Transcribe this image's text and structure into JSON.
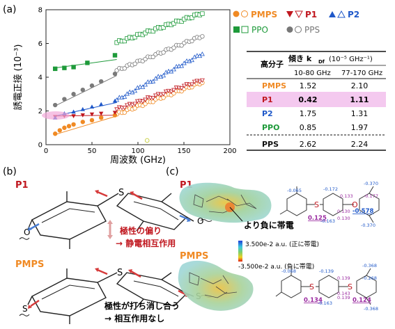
{
  "panel_labels": {
    "a": "(a)",
    "b": "(b)",
    "c": "(c)"
  },
  "chart_data": {
    "type": "scatter",
    "xlabel": "周波数 (GHz)",
    "ylabel": "誘電正接 (10⁻³)",
    "xlim": [
      0,
      200
    ],
    "ylim": [
      0,
      8
    ],
    "xticks": [
      "0",
      "50",
      "100",
      "150",
      "200"
    ],
    "yticks": [
      "0",
      "2",
      "4",
      "6",
      "8"
    ],
    "legend_position": "top-right, outside plot",
    "series": [
      {
        "name": "PMPS",
        "color": "#f08a24",
        "marker": "circle",
        "filled": [
          [
            10,
            0.65
          ],
          [
            15,
            0.85
          ],
          [
            20,
            1.0
          ],
          [
            25,
            1.1
          ],
          [
            30,
            1.2
          ],
          [
            40,
            1.35
          ],
          [
            50,
            1.45
          ],
          [
            60,
            1.6
          ],
          [
            75,
            1.75
          ]
        ],
        "open_x": [
          77,
          170
        ],
        "open_y": [
          1.8,
          3.7
        ],
        "fit_low": [
          [
            10,
            0.6
          ],
          [
            77,
            1.7
          ]
        ],
        "fit_high": [
          [
            77,
            1.9
          ],
          [
            170,
            3.7
          ]
        ]
      },
      {
        "name": "P1",
        "color": "#c0171f",
        "marker": "triangle-down",
        "filled": [
          [
            10,
            1.65
          ],
          [
            20,
            1.7
          ],
          [
            30,
            1.7
          ],
          [
            40,
            1.75
          ],
          [
            50,
            1.8
          ],
          [
            60,
            1.85
          ],
          [
            75,
            1.9
          ]
        ],
        "open_x": [
          77,
          170
        ],
        "open_y": [
          2.1,
          3.85
        ],
        "fit_low": [
          [
            10,
            1.7
          ],
          [
            77,
            1.75
          ]
        ],
        "fit_high": [
          [
            77,
            2.1
          ],
          [
            170,
            3.85
          ]
        ]
      },
      {
        "name": "P2",
        "color": "#1f58c9",
        "marker": "triangle-up",
        "filled": [
          [
            10,
            1.6
          ],
          [
            20,
            1.85
          ],
          [
            30,
            1.95
          ],
          [
            40,
            2.1
          ],
          [
            50,
            2.25
          ],
          [
            60,
            2.4
          ],
          [
            75,
            2.6
          ]
        ],
        "open_x": [
          77,
          170
        ],
        "open_y": [
          2.65,
          5.4
        ],
        "fit_low": [
          [
            10,
            1.7
          ],
          [
            77,
            2.5
          ]
        ],
        "fit_high": [
          [
            77,
            2.65
          ],
          [
            170,
            5.4
          ]
        ]
      },
      {
        "name": "PPO",
        "color": "#1e9a3a",
        "marker": "square",
        "filled": [
          [
            10,
            4.5
          ],
          [
            20,
            4.55
          ],
          [
            30,
            4.6
          ],
          [
            45,
            4.85
          ],
          [
            75,
            5.3
          ]
        ],
        "open_x": [
          77,
          170
        ],
        "open_y": [
          6.05,
          7.8
        ],
        "fit_low": [
          [
            10,
            4.55
          ],
          [
            77,
            5.05
          ]
        ],
        "fit_high": [
          [
            77,
            6.05
          ],
          [
            170,
            7.8
          ]
        ]
      },
      {
        "name": "PPS",
        "color": "#7a7a7a",
        "marker": "circle",
        "filled": [
          [
            10,
            2.35
          ],
          [
            20,
            2.7
          ],
          [
            30,
            3.0
          ],
          [
            40,
            3.25
          ],
          [
            50,
            3.5
          ],
          [
            60,
            3.75
          ],
          [
            75,
            4.2
          ]
        ],
        "open_x": [
          77,
          170
        ],
        "open_y": [
          4.4,
          6.45
        ],
        "fit_low": [
          [
            10,
            2.3
          ],
          [
            77,
            4.1
          ]
        ],
        "fit_high": [
          [
            77,
            4.4
          ],
          [
            170,
            6.45
          ]
        ]
      }
    ],
    "extra_points": [
      [
        110,
        0.25
      ]
    ]
  },
  "legend": {
    "pmps": "PMPS",
    "p1": "P1",
    "p2": "P2",
    "ppo": "PPO",
    "pps": "PPS"
  },
  "table": {
    "col_header": "高分子",
    "slope_header": "傾き k",
    "slope_sub": "Df",
    "slope_unit": "(10⁻⁵ GHz⁻¹)",
    "range_low": "10-80 GHz",
    "range_high": "77-170 GHz",
    "rows": [
      {
        "name": "PMPS",
        "v1": "1.52",
        "v2": "2.10",
        "color": "#f08a24"
      },
      {
        "name": "P1",
        "v1": "0.42",
        "v2": "1.11",
        "color": "#c0171f"
      },
      {
        "name": "P2",
        "v1": "1.75",
        "v2": "1.31",
        "color": "#1f58c9"
      },
      {
        "name": "PPO",
        "v1": "0.85",
        "v2": "1.97",
        "color": "#1e9a3a"
      },
      {
        "name": "PPS",
        "v1": "2.62",
        "v2": "2.24",
        "color": "#111111"
      }
    ]
  },
  "panel_b": {
    "p1_title": "P1",
    "p1_note1": "極性の偏り",
    "p1_note2": "→ 静電相互作用",
    "pmps_title": "PMPS",
    "pmps_note1": "極性が打ち消し合う",
    "pmps_note2": "→ 相互作用なし",
    "atom_s": "S",
    "atom_o": "O"
  },
  "panel_c": {
    "p1_title": "P1",
    "pmps_title": "PMPS",
    "callout": "より負に帯電",
    "scale_top": "3.500e-2 a.u. (正に帯電)",
    "scale_bottom": "-3.500e-2 a.u. (負に帯電)",
    "p1_charges": [
      "-0.065",
      "-0.172",
      "-0.370",
      "0.133",
      "-0.177",
      "0.125",
      "0.130",
      "-0.578",
      "-0.163",
      "0.130",
      "-0.370"
    ],
    "pmps_charges": [
      "-0.068",
      "-0.139",
      "-0.368",
      "0.139",
      "-0.268",
      "0.134",
      "0.143",
      "0.124",
      "-0.163",
      "0.139",
      "-0.368"
    ]
  }
}
